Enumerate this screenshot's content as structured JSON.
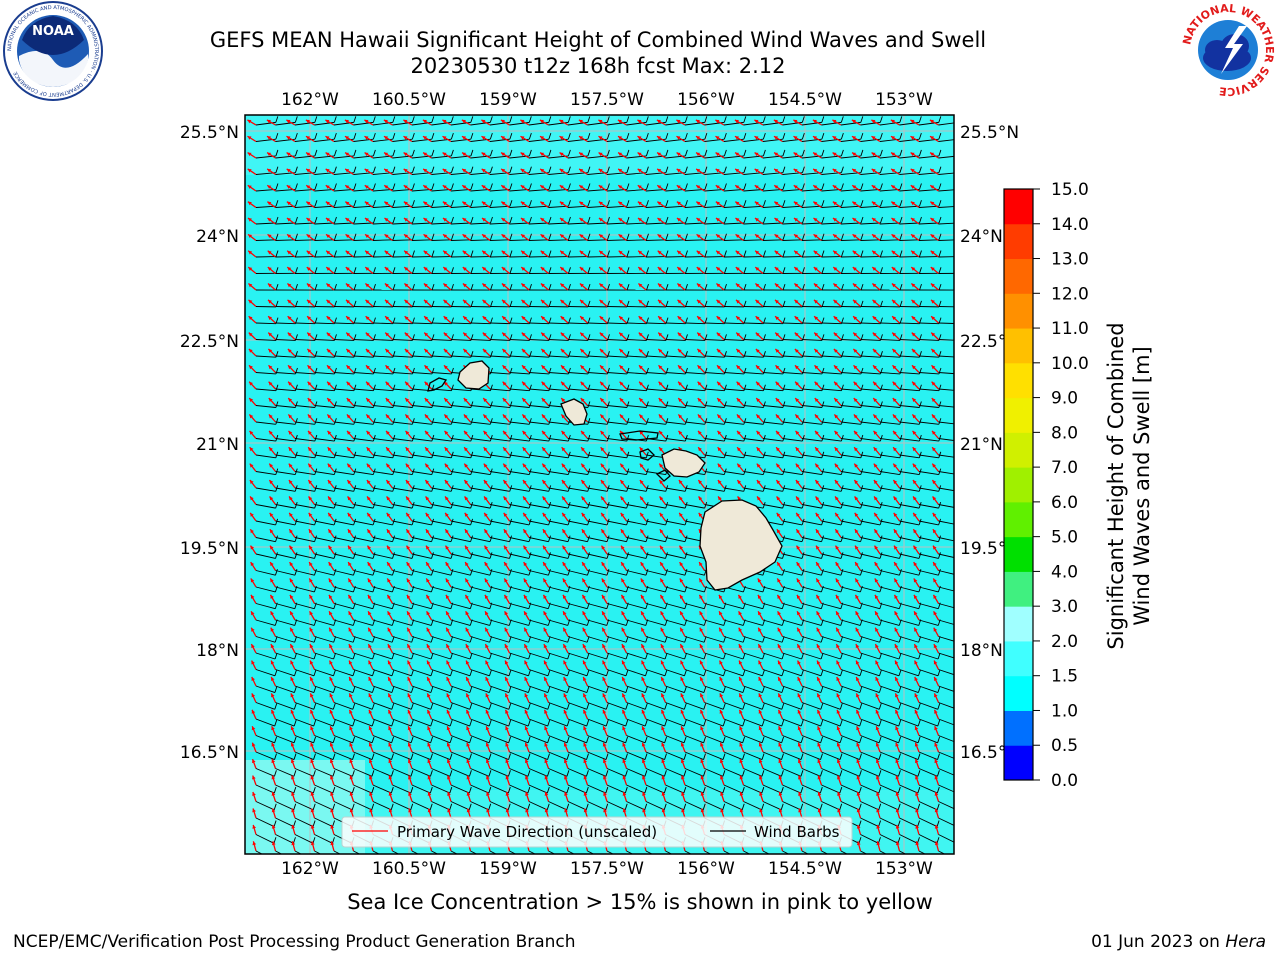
{
  "title_line1": "GEFS MEAN Hawaii Significant Height of Combined Wind Waves and Swell",
  "title_line2": "20230530 t12z 168h fcst   Max: 2.12",
  "logos": {
    "noaa": "noaa-logo",
    "nws": "nws-logo"
  },
  "logo_text": {
    "noaa_center": "NOAA",
    "noaa_ring": "NATIONAL OCEANIC AND ATMOSPHERIC ADMINISTRATION · U.S. DEPARTMENT OF COMMERCE",
    "nws_ring": "NATIONAL WEATHER SERVICE"
  },
  "map": {
    "lon_ticks": [
      "162°W",
      "160.5°W",
      "159°W",
      "157.5°W",
      "156°W",
      "154.5°W",
      "153°W"
    ],
    "lat_ticks": [
      "25.5°N",
      "24°N",
      "22.5°N",
      "21°N",
      "19.5°N",
      "18°N",
      "16.5°N"
    ],
    "ocean_color": "#29f2f2",
    "land_color": "#efe9d8",
    "wave_arrow_color": "#ff0000",
    "wind_barb_color": "#000000",
    "islands": [
      "Niihau",
      "Kauai",
      "Oahu",
      "Molokai",
      "Lanai",
      "Maui",
      "Kahoolawe",
      "Hawaii"
    ]
  },
  "legend": {
    "wave_label": "Primary Wave Direction (unscaled)",
    "wind_label": "Wind Barbs"
  },
  "colorbar": {
    "label_line1": "Significant Height of Combined",
    "label_line2": "Wind Waves and Swell [m]",
    "ticks": [
      "0.0",
      "0.5",
      "1.0",
      "1.5",
      "2.0",
      "3.0",
      "4.0",
      "5.0",
      "6.0",
      "7.0",
      "8.0",
      "9.0",
      "10.0",
      "11.0",
      "12.0",
      "13.0",
      "14.0",
      "15.0"
    ],
    "colors": [
      "#0000ff",
      "#0070ff",
      "#00ffff",
      "#40ffff",
      "#a0ffff",
      "#40f080",
      "#00e000",
      "#60f000",
      "#a0f000",
      "#d0f000",
      "#f0f000",
      "#ffe000",
      "#ffc000",
      "#ff9000",
      "#ff6800",
      "#ff3c00",
      "#ff0000"
    ]
  },
  "sea_ice_note": "Sea Ice Concentration > 15% is shown in pink to yellow",
  "footer_left": "NCEP/EMC/Verification Post Processing Product Generation Branch",
  "footer_date": "01 Jun 2023 on ",
  "footer_host": "Hera"
}
